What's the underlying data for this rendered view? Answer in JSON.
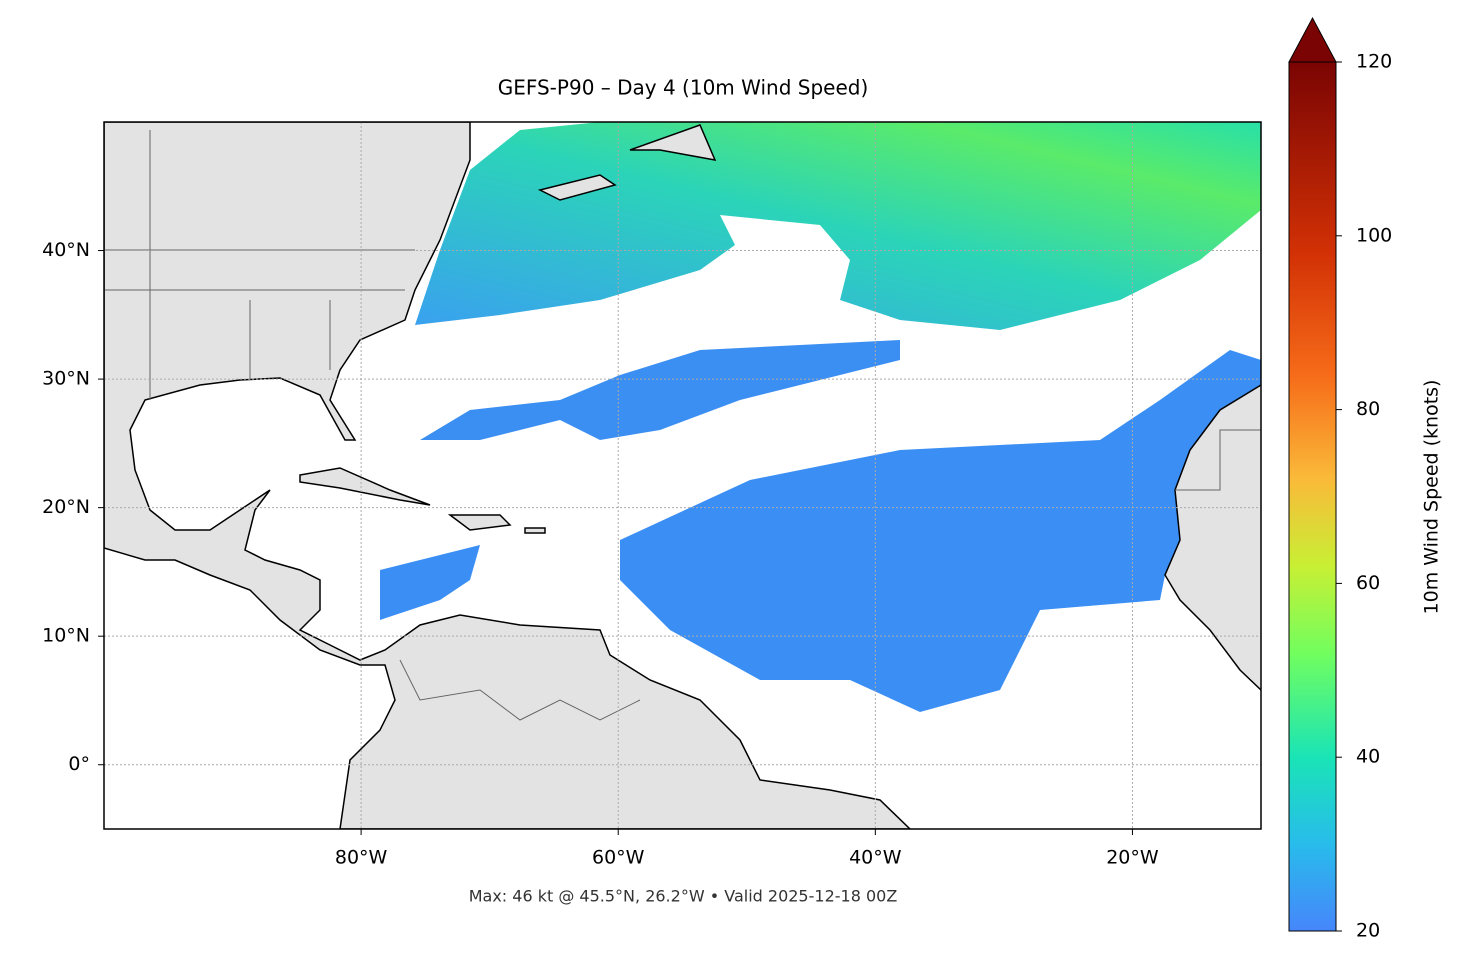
{
  "title": "GEFS-P90 – Day 4 (10m Wind Speed)",
  "footer": "Max: 46 kt @ 45.5°N, 26.2°W • Valid 2025-12-18 00Z",
  "map": {
    "lon_range": [
      -100,
      -10
    ],
    "lat_range": [
      -5,
      50
    ],
    "xticks": [
      {
        "value": -80,
        "label": "80°W"
      },
      {
        "value": -60,
        "label": "60°W"
      },
      {
        "value": -40,
        "label": "40°W"
      },
      {
        "value": -20,
        "label": "20°W"
      }
    ],
    "yticks": [
      {
        "value": 0,
        "label": "0°"
      },
      {
        "value": 10,
        "label": "10°N"
      },
      {
        "value": 20,
        "label": "20°N"
      },
      {
        "value": 30,
        "label": "30°N"
      },
      {
        "value": 40,
        "label": "40°N"
      }
    ]
  },
  "colorbar": {
    "label": "10m Wind Speed (knots)",
    "range": [
      20,
      120
    ],
    "ticks": [
      20,
      40,
      60,
      80,
      100,
      120
    ]
  }
}
